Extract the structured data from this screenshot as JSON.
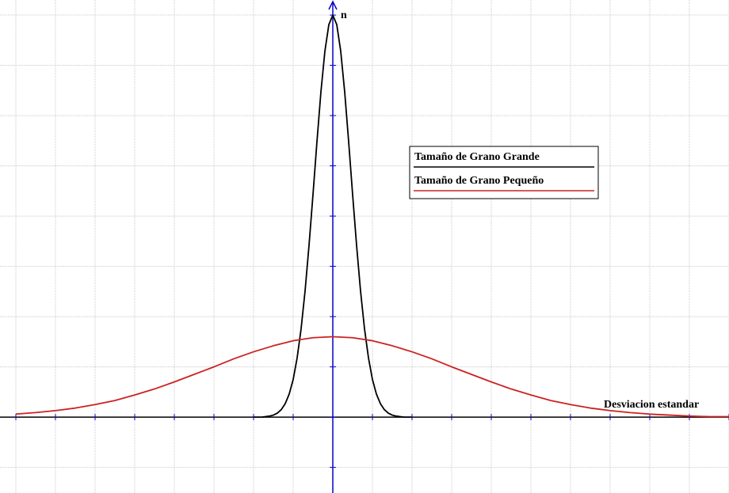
{
  "chart_data": {
    "type": "line",
    "y_label": "n",
    "x_label": "Desviacion estandar",
    "xlim": [
      -8.4,
      10
    ],
    "ylim": [
      -1.51,
      8.3
    ],
    "xticks": [
      -8,
      -7,
      -6,
      -5,
      -4,
      -3,
      -2,
      -1,
      0,
      1,
      2,
      3,
      4,
      5,
      6,
      7,
      8,
      9,
      10
    ],
    "yticks": [
      -1,
      0,
      1,
      2,
      3,
      4,
      5,
      6,
      7,
      8
    ],
    "grid": true,
    "series": [
      {
        "name": "Tamaño de Grano Grande",
        "color": "#000000",
        "x": [
          -2,
          -1.9,
          -1.8,
          -1.7,
          -1.6,
          -1.5,
          -1.4,
          -1.3,
          -1.2,
          -1.1,
          -1,
          -0.9,
          -0.8,
          -0.7,
          -0.6,
          -0.5,
          -0.4,
          -0.3,
          -0.2,
          -0.1,
          0,
          0.1,
          0.2,
          0.3,
          0.4,
          0.5,
          0.6,
          0.7,
          0.8,
          0.9,
          1,
          1.1,
          1.2,
          1.3,
          1.4,
          1.5,
          1.6,
          1.7,
          1.8,
          1.9,
          2
        ],
        "values": [
          0,
          0,
          0,
          0.01,
          0.02,
          0.04,
          0.08,
          0.15,
          0.27,
          0.46,
          0.75,
          1.18,
          1.76,
          2.51,
          3.42,
          4.43,
          5.48,
          6.47,
          7.28,
          7.81,
          8,
          7.81,
          7.28,
          6.47,
          5.48,
          4.43,
          3.42,
          2.51,
          1.76,
          1.18,
          0.75,
          0.46,
          0.27,
          0.15,
          0.08,
          0.04,
          0.02,
          0.01,
          0,
          0,
          0
        ]
      },
      {
        "name": "Tamaño de Grano Pequeño",
        "color": "#cc2222",
        "x": [
          -8,
          -7.5,
          -7,
          -6.5,
          -6,
          -5.5,
          -5,
          -4.5,
          -4,
          -3.5,
          -3,
          -2.5,
          -2,
          -1.5,
          -1,
          -0.5,
          0,
          0.5,
          1,
          1.5,
          2,
          2.5,
          3,
          3.5,
          4,
          4.5,
          5,
          5.5,
          6,
          6.5,
          7,
          7.5,
          8,
          8.5,
          9,
          9.5,
          10
        ],
        "values": [
          0.06,
          0.09,
          0.13,
          0.18,
          0.25,
          0.33,
          0.44,
          0.56,
          0.7,
          0.85,
          1,
          1.16,
          1.3,
          1.42,
          1.52,
          1.58,
          1.6,
          1.58,
          1.52,
          1.42,
          1.3,
          1.16,
          1,
          0.85,
          0.7,
          0.56,
          0.44,
          0.33,
          0.25,
          0.18,
          0.13,
          0.09,
          0.06,
          0.04,
          0.02,
          0.01,
          0.01
        ]
      }
    ]
  }
}
